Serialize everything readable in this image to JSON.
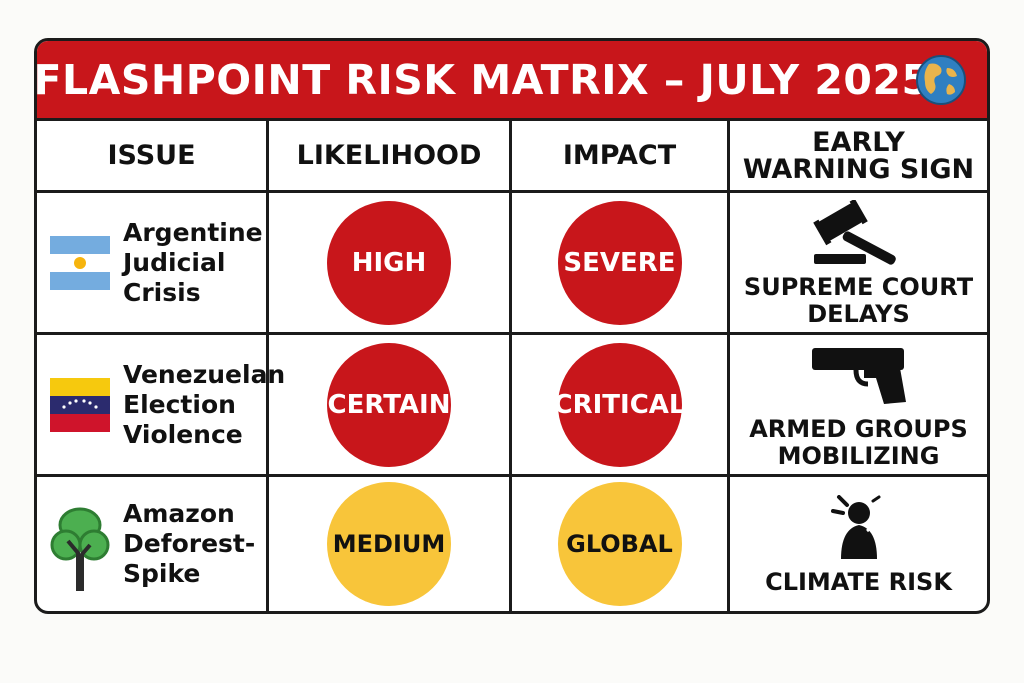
{
  "title": "FLASHPOINT RISK MATRIX – JULY 2025",
  "headers": {
    "issue": "ISSUE",
    "likelihood": "LIKELIHOOD",
    "impact": "IMPACT",
    "warning_line1": "EARLY",
    "warning_line2": "WARNING SIGN"
  },
  "colors": {
    "banner": "#c8161b",
    "red_badge": "#c8161b",
    "yellow_badge": "#f8c53a"
  },
  "rows": [
    {
      "icon": "argentina-flag-icon",
      "issue_lines": [
        "Argentine",
        "Judicial",
        "Crisis"
      ],
      "likelihood": "HIGH",
      "likelihood_color": "red",
      "impact": "SEVERE",
      "impact_color": "red",
      "warning_icon": "gavel-icon",
      "warning_lines": [
        "SUPREME COURT",
        "DELAYS"
      ]
    },
    {
      "icon": "venezuela-flag-icon",
      "issue_lines": [
        "Venezuelan",
        "Election",
        "Violence"
      ],
      "likelihood": "CERTAIN",
      "likelihood_color": "red",
      "impact": "CRITICAL",
      "impact_color": "red",
      "warning_icon": "pistol-icon",
      "warning_lines": [
        "ARMED GROUPS",
        "MOBILIZING"
      ]
    },
    {
      "icon": "tree-icon",
      "issue_lines": [
        "Amazon",
        "Deforest-",
        "Spike"
      ],
      "likelihood": "MEDIUM",
      "likelihood_color": "yellow",
      "impact": "GLOBAL",
      "impact_color": "yellow",
      "warning_icon": "distressed-person-icon",
      "warning_lines": [
        "CLIMATE RISK"
      ]
    }
  ]
}
